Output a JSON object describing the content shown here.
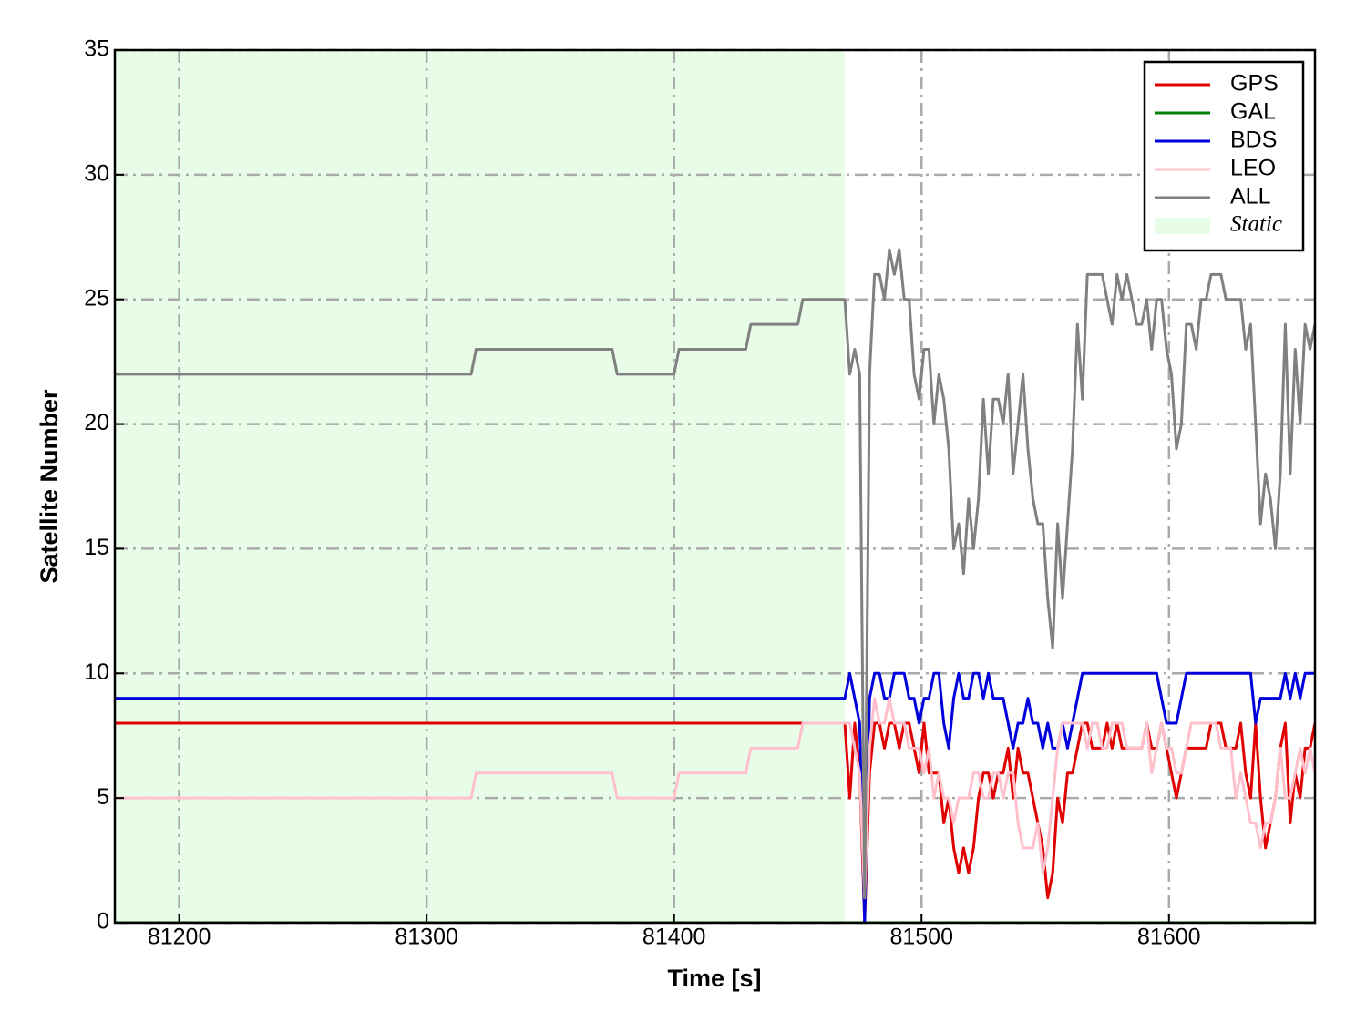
{
  "chart_data": {
    "type": "line",
    "xlabel": "Time [s]",
    "ylabel": "Satellite Number",
    "x": [
      81174,
      81318,
      81320,
      81375,
      81377,
      81400,
      81402,
      81429,
      81431,
      81450,
      81452,
      81469,
      81471,
      81473,
      81475,
      81477,
      81479,
      81481,
      81483,
      81485,
      81487,
      81489,
      81491,
      81493,
      81495,
      81497,
      81499,
      81501,
      81503,
      81505,
      81507,
      81509,
      81511,
      81513,
      81515,
      81517,
      81519,
      81521,
      81523,
      81525,
      81527,
      81529,
      81531,
      81533,
      81535,
      81537,
      81539,
      81541,
      81543,
      81545,
      81547,
      81549,
      81551,
      81553,
      81555,
      81557,
      81559,
      81561,
      81563,
      81565,
      81567,
      81569,
      81571,
      81573,
      81575,
      81577,
      81579,
      81581,
      81583,
      81585,
      81587,
      81589,
      81591,
      81593,
      81595,
      81597,
      81599,
      81601,
      81603,
      81605,
      81607,
      81609,
      81611,
      81613,
      81615,
      81617,
      81619,
      81621,
      81623,
      81625,
      81627,
      81629,
      81631,
      81633,
      81635,
      81637,
      81639,
      81641,
      81643,
      81645,
      81647,
      81649,
      81651,
      81653,
      81655,
      81657,
      81659
    ],
    "series": [
      {
        "name": "GPS",
        "color": "#e00000",
        "values": [
          8,
          8,
          8,
          8,
          8,
          8,
          8,
          8,
          8,
          8,
          8,
          8,
          5,
          8,
          6,
          0,
          6,
          8,
          8,
          7,
          8,
          8,
          7,
          8,
          8,
          7,
          6,
          8,
          6,
          6,
          6,
          4,
          5,
          3,
          2,
          3,
          2,
          3,
          5,
          6,
          6,
          5,
          6,
          6,
          7,
          5,
          7,
          6,
          6,
          5,
          4,
          3,
          1,
          2,
          5,
          4,
          6,
          6,
          7,
          8,
          8,
          7,
          7,
          7,
          8,
          7,
          8,
          7,
          7,
          7,
          7,
          7,
          8,
          7,
          7,
          8,
          7,
          6,
          5,
          6,
          7,
          7,
          7,
          7,
          7,
          8,
          8,
          8,
          7,
          7,
          7,
          8,
          6,
          5,
          8,
          5,
          3,
          4,
          5,
          7,
          8,
          4,
          6,
          5,
          7,
          7,
          8
        ]
      },
      {
        "name": "GAL",
        "color": "#008000",
        "values": [
          0,
          0,
          0,
          0,
          0,
          0,
          0,
          0,
          0,
          0,
          0,
          0,
          0,
          0,
          0,
          0,
          0,
          0,
          0,
          0,
          0,
          0,
          0,
          0,
          0,
          0,
          0,
          0,
          0,
          0,
          0,
          0,
          0,
          0,
          0,
          0,
          0,
          0,
          0,
          0,
          0,
          0,
          0,
          0,
          0,
          0,
          0,
          0,
          0,
          0,
          0,
          0,
          0,
          0,
          0,
          0,
          0,
          0,
          0,
          0,
          0,
          0,
          0,
          0,
          0,
          0,
          0,
          0,
          0,
          0,
          0,
          0,
          0,
          0,
          0,
          0,
          0,
          0,
          0,
          0,
          0,
          0,
          0,
          0,
          0,
          0,
          0,
          0,
          0,
          0,
          0,
          0,
          0,
          0,
          0,
          0,
          0,
          0,
          0,
          0,
          0,
          0,
          0,
          0,
          0,
          0,
          0
        ]
      },
      {
        "name": "BDS",
        "color": "#0000dd",
        "values": [
          9,
          9,
          9,
          9,
          9,
          9,
          9,
          9,
          9,
          9,
          9,
          9,
          10,
          9,
          8,
          0,
          9,
          10,
          10,
          9,
          9,
          10,
          10,
          10,
          9,
          9,
          8,
          9,
          9,
          10,
          10,
          8,
          7,
          9,
          10,
          9,
          9,
          10,
          10,
          9,
          10,
          9,
          9,
          9,
          8,
          7,
          8,
          8,
          9,
          8,
          8,
          7,
          8,
          7,
          7,
          8,
          7,
          8,
          9,
          10,
          10,
          10,
          10,
          10,
          10,
          10,
          10,
          10,
          10,
          10,
          10,
          10,
          10,
          10,
          10,
          9,
          8,
          8,
          8,
          9,
          10,
          10,
          10,
          10,
          10,
          10,
          10,
          10,
          10,
          10,
          10,
          10,
          10,
          10,
          8,
          9,
          9,
          9,
          9,
          9,
          10,
          9,
          10,
          9,
          10,
          10,
          10
        ]
      },
      {
        "name": "LEO",
        "color": "#ffc0cb",
        "values": [
          5,
          5,
          6,
          6,
          5,
          5,
          6,
          6,
          7,
          7,
          8,
          8,
          8,
          7,
          6,
          1,
          7,
          9,
          8,
          8,
          9,
          8,
          8,
          8,
          7,
          7,
          7,
          6,
          7,
          5,
          6,
          5,
          5,
          4,
          5,
          5,
          5,
          6,
          6,
          5,
          5,
          6,
          6,
          5,
          6,
          6,
          4,
          3,
          3,
          3,
          4,
          2,
          3,
          5,
          7,
          8,
          8,
          8,
          8,
          8,
          7,
          8,
          8,
          7,
          7,
          8,
          8,
          8,
          7,
          7,
          7,
          7,
          8,
          6,
          7,
          8,
          7,
          7,
          6,
          6,
          7,
          8,
          8,
          8,
          8,
          8,
          8,
          7,
          7,
          7,
          5,
          6,
          5,
          4,
          4,
          3,
          4,
          4,
          5,
          7,
          5,
          5,
          6,
          7,
          6,
          7,
          6
        ]
      },
      {
        "name": "ALL",
        "color": "#808080",
        "values": [
          22,
          22,
          23,
          23,
          22,
          22,
          23,
          23,
          24,
          24,
          25,
          25,
          22,
          23,
          22,
          1,
          22,
          26,
          26,
          25,
          27,
          26,
          27,
          25,
          25,
          22,
          21,
          23,
          23,
          20,
          22,
          21,
          19,
          15,
          16,
          14,
          17,
          15,
          17,
          21,
          18,
          21,
          21,
          20,
          22,
          18,
          20,
          22,
          19,
          17,
          16,
          16,
          13,
          11,
          16,
          13,
          16,
          19,
          24,
          21,
          26,
          26,
          26,
          26,
          25,
          24,
          26,
          25,
          26,
          25,
          24,
          24,
          25,
          23,
          25,
          25,
          23,
          22,
          19,
          20,
          24,
          24,
          23,
          25,
          25,
          26,
          26,
          26,
          25,
          25,
          25,
          25,
          23,
          24,
          20,
          16,
          18,
          17,
          15,
          18,
          24,
          18,
          23,
          20,
          24,
          23,
          24
        ]
      }
    ],
    "static": {
      "name": "Static",
      "color": "#e8fde8",
      "x": [
        81174,
        81469
      ]
    },
    "xlim": [
      81174,
      81659
    ],
    "xticks": [
      81200,
      81300,
      81400,
      81500,
      81600
    ],
    "ylim": [
      0,
      35
    ],
    "yticks": [
      0,
      5,
      10,
      15,
      20,
      25,
      30,
      35
    ],
    "grid": true,
    "legend": "upper right"
  }
}
